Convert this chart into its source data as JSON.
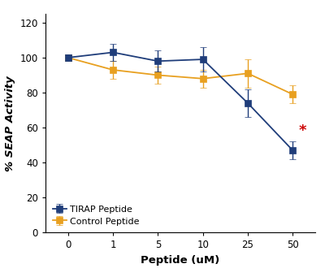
{
  "x_values": [
    0,
    1,
    5,
    10,
    25,
    50
  ],
  "tirap_y": [
    100,
    103,
    98,
    99,
    74,
    47
  ],
  "tirap_yerr": [
    2,
    5,
    6,
    7,
    8,
    5
  ],
  "control_y": [
    100,
    93,
    90,
    88,
    91,
    79
  ],
  "control_yerr": [
    2,
    5,
    5,
    5,
    8,
    5
  ],
  "tirap_color": "#1F3D7A",
  "control_color": "#E8A020",
  "tirap_label": "TIRAP Peptide",
  "control_label": "Control Peptide",
  "xlabel": "Peptide (uM)",
  "ylabel": "% SEAP Activity",
  "ylim": [
    0,
    125
  ],
  "yticks": [
    0,
    20,
    40,
    60,
    80,
    100,
    120
  ],
  "star_color": "#CC0000",
  "background_color": "#FFFFFF",
  "marker_size": 6,
  "linewidth": 1.3,
  "capsize": 3,
  "elinewidth": 1.0
}
